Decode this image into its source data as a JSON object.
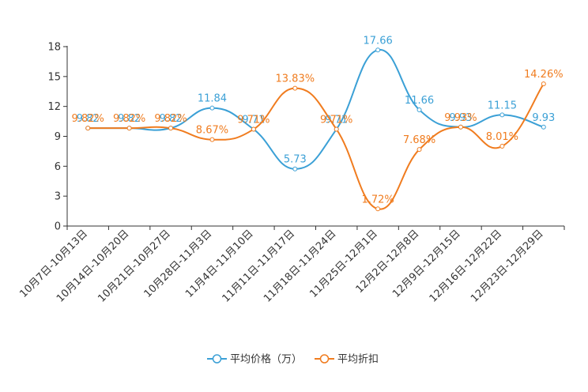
{
  "chart_data": {
    "type": "line",
    "categories": [
      "10月7日-10月13日",
      "10月14日-10月20日",
      "10月21日-10月27日",
      "10月28日-11月3日",
      "11月4日-11月10日",
      "11月11日-11月17日",
      "11月18日-11月24日",
      "11月25日-12月1日",
      "12月2日-12月8日",
      "12月9日-12月15日",
      "12月16日-12月22日",
      "12月23日-12月29日"
    ],
    "series": [
      {
        "name": "平均价格（万）",
        "color": "#3ba0d6",
        "values": [
          9.82,
          9.82,
          9.82,
          11.84,
          9.71,
          5.73,
          9.71,
          17.66,
          11.66,
          9.93,
          11.15,
          9.93
        ],
        "labels": [
          "9.82",
          "9.82",
          "9.82",
          "11.84",
          "9.71",
          "5.73",
          "9.71",
          "17.66",
          "11.66",
          "9.93",
          "11.15",
          "9.93"
        ]
      },
      {
        "name": "平均折扣",
        "color": "#f07c1f",
        "values": [
          9.82,
          9.82,
          9.82,
          8.67,
          9.71,
          13.83,
          9.71,
          1.72,
          7.68,
          9.93,
          8.01,
          14.26
        ],
        "labels": [
          "9.82%",
          "9.82%",
          "9.82%",
          "8.67%",
          "9.71%",
          "13.83%",
          "9.71%",
          "1.72%",
          "7.68%",
          "9.93%",
          "8.01%",
          "14.26%"
        ]
      }
    ],
    "yticks": [
      "0",
      "3",
      "6",
      "9",
      "12",
      "15",
      "18"
    ],
    "ylim": [
      0,
      18
    ],
    "title": "",
    "xlabel": "",
    "ylabel": "",
    "legend_position": "bottom-center"
  }
}
